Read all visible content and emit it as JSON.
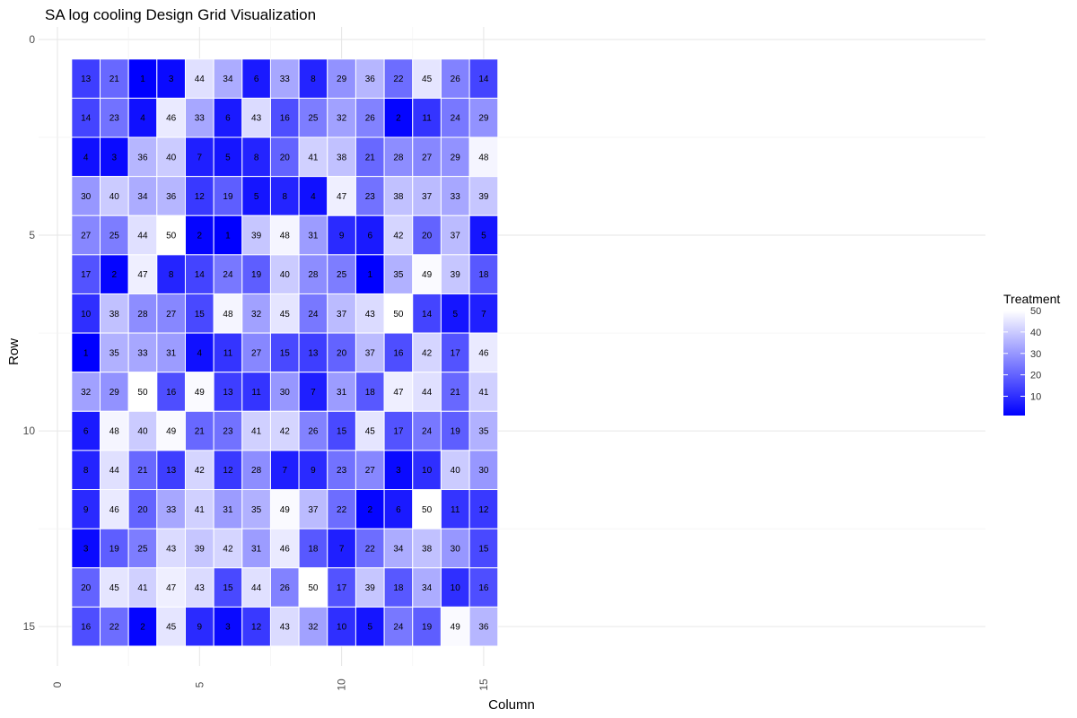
{
  "chart_data": {
    "type": "heatmap",
    "title": "SA log cooling Design Grid Visualization",
    "xlabel": "Column",
    "ylabel": "Row",
    "xlim": [
      0,
      16
    ],
    "ylim": [
      0,
      16
    ],
    "y_reversed": true,
    "x_ticks": [
      "0",
      "5",
      "10",
      "15"
    ],
    "y_ticks": [
      "0",
      "5",
      "10",
      "15"
    ],
    "grid": true,
    "legend": {
      "title": "Treatment",
      "placement": "right",
      "ticks": [
        "10",
        "20",
        "30",
        "40",
        "50"
      ],
      "range": [
        1,
        50
      ],
      "low_color": "#0000ff",
      "high_color": "#ffffff"
    },
    "columns": [
      1,
      2,
      3,
      4,
      5,
      6,
      7,
      8,
      9,
      10,
      11,
      12,
      13,
      14,
      15
    ],
    "rows": [
      1,
      2,
      3,
      4,
      5,
      6,
      7,
      8,
      9,
      10,
      11,
      12,
      13,
      14,
      15
    ],
    "values": [
      [
        13,
        21,
        1,
        3,
        44,
        34,
        6,
        33,
        8,
        29,
        36,
        22,
        45,
        26,
        14
      ],
      [
        14,
        23,
        4,
        46,
        33,
        6,
        43,
        16,
        25,
        32,
        26,
        2,
        11,
        24,
        29
      ],
      [
        4,
        3,
        36,
        40,
        7,
        5,
        8,
        20,
        41,
        38,
        21,
        28,
        27,
        29,
        48
      ],
      [
        30,
        40,
        34,
        36,
        12,
        19,
        5,
        8,
        4,
        47,
        23,
        38,
        37,
        33,
        39
      ],
      [
        27,
        25,
        44,
        50,
        2,
        1,
        39,
        48,
        31,
        9,
        6,
        42,
        20,
        37,
        5
      ],
      [
        17,
        2,
        47,
        8,
        14,
        24,
        19,
        40,
        28,
        25,
        1,
        35,
        49,
        39,
        18
      ],
      [
        10,
        38,
        28,
        27,
        15,
        48,
        32,
        45,
        24,
        37,
        43,
        50,
        14,
        5,
        7
      ],
      [
        1,
        35,
        33,
        31,
        4,
        11,
        27,
        15,
        13,
        20,
        37,
        16,
        42,
        17,
        46
      ],
      [
        32,
        29,
        50,
        16,
        49,
        13,
        11,
        30,
        7,
        31,
        18,
        47,
        44,
        21,
        41
      ],
      [
        6,
        48,
        40,
        49,
        21,
        23,
        41,
        42,
        26,
        15,
        45,
        17,
        24,
        19,
        35
      ],
      [
        8,
        44,
        21,
        13,
        42,
        12,
        28,
        7,
        9,
        23,
        27,
        3,
        10,
        40,
        30
      ],
      [
        9,
        46,
        20,
        33,
        41,
        31,
        35,
        49,
        37,
        22,
        2,
        6,
        50,
        11,
        12
      ],
      [
        3,
        19,
        25,
        43,
        39,
        42,
        31,
        46,
        18,
        7,
        22,
        34,
        38,
        30,
        15
      ],
      [
        20,
        45,
        41,
        47,
        43,
        15,
        44,
        26,
        50,
        17,
        39,
        18,
        34,
        10,
        16
      ],
      [
        16,
        22,
        2,
        45,
        9,
        3,
        12,
        43,
        32,
        10,
        5,
        24,
        19,
        49,
        36
      ]
    ]
  }
}
